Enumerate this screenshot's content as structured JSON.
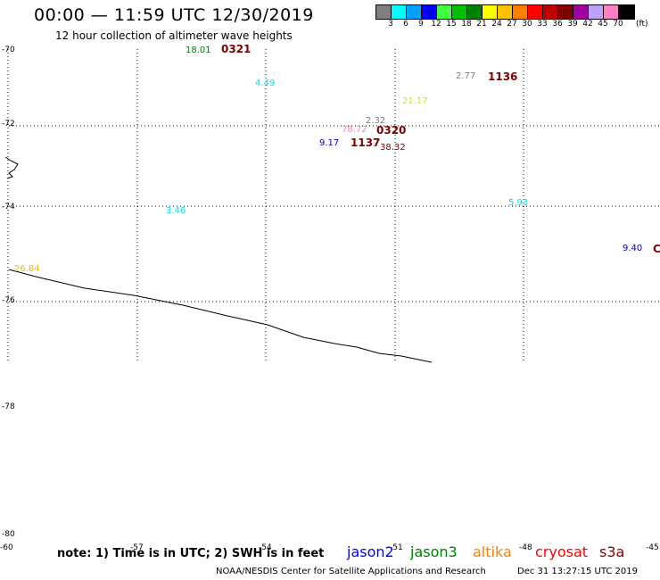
{
  "title": "00:00 — 11:59 UTC 12/30/2019",
  "subtitle": "12 hour collection of altimeter wave heights",
  "legend": {
    "unit": "(ft)",
    "swatches": [
      {
        "label": "3",
        "color": "#7f7f7f"
      },
      {
        "label": "6",
        "color": "#00ffff"
      },
      {
        "label": "9",
        "color": "#00a0ff"
      },
      {
        "label": "12",
        "color": "#0000ff"
      },
      {
        "label": "15",
        "color": "#40ff40"
      },
      {
        "label": "18",
        "color": "#00c000"
      },
      {
        "label": "21",
        "color": "#008000"
      },
      {
        "label": "24",
        "color": "#ffff00"
      },
      {
        "label": "27",
        "color": "#ffc000"
      },
      {
        "label": "30",
        "color": "#ff8000"
      },
      {
        "label": "33",
        "color": "#ff0000"
      },
      {
        "label": "36",
        "color": "#c00000"
      },
      {
        "label": "39",
        "color": "#800000"
      },
      {
        "label": "42",
        "color": "#a000a0"
      },
      {
        "label": "45",
        "color": "#c0a0ff"
      },
      {
        "label": "70",
        "color": "#ff80c0"
      },
      {
        "label": "",
        "color": "#000000"
      }
    ]
  },
  "latitude_labels": [
    "-70",
    "-72",
    "-74",
    "-76",
    "-78",
    "-80"
  ],
  "longitude_labels": [
    "-60",
    "-57",
    "-54",
    "-51",
    "-48",
    "-45"
  ],
  "observations": [
    {
      "value": "18.01",
      "color": "#008000"
    },
    {
      "value": "4.49",
      "color": "#00e0e0"
    },
    {
      "value": "2.77",
      "color": "#7f7f7f"
    },
    {
      "value": "21.17",
      "color": "#e0e000"
    },
    {
      "value": "2.32",
      "color": "#7f7f7f"
    },
    {
      "value": "78.72",
      "color": "#ff80c0"
    },
    {
      "value": "9.17",
      "color": "#0000c0"
    },
    {
      "value": "38.32",
      "color": "#800000"
    },
    {
      "value": "3.46",
      "color": "#00e0e0"
    },
    {
      "value": "5.93",
      "color": "#00e0e0"
    },
    {
      "value": "9.40",
      "color": "#0000c0"
    },
    {
      "value": "26.84",
      "color": "#e0c000"
    }
  ],
  "pass_times": [
    {
      "value": "0321",
      "color": "#800000"
    },
    {
      "value": "1136",
      "color": "#800000"
    },
    {
      "value": "0320",
      "color": "#800000"
    },
    {
      "value": "1137",
      "color": "#800000"
    },
    {
      "value": "C",
      "color": "#800000"
    }
  ],
  "footer": {
    "note": "note: 1) Time is in UTC; 2) SWH is in feet",
    "satellites": [
      {
        "name": "jason2",
        "color": "#0000ff"
      },
      {
        "name": "jason3",
        "color": "#008000"
      },
      {
        "name": "altika",
        "color": "#ff8000"
      },
      {
        "name": "cryosat",
        "color": "#ff0000"
      },
      {
        "name": "s3a",
        "color": "#800000"
      }
    ],
    "credit": "NOAA/NESDIS Center for Satellite Applications and Research",
    "timestamp": "Dec 31 13:27:15 UTC 2019"
  }
}
